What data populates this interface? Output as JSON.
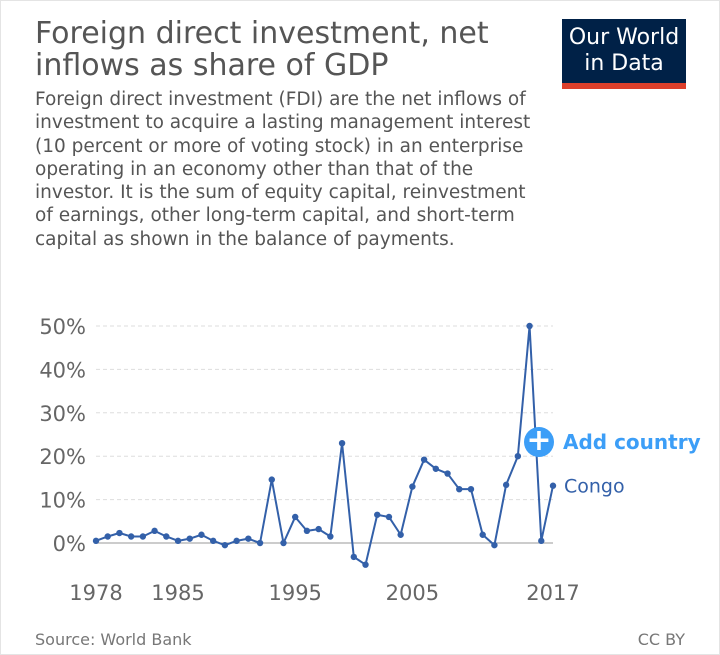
{
  "header": {
    "title": "Foreign direct investment, net inflows as share of GDP",
    "subtitle": "Foreign direct investment (FDI) are the net inflows of investment to acquire a lasting management interest (10 percent or more of voting stock) in an enterprise operating in an economy other than that of the investor. It is the sum of equity capital, reinvestment of earnings, other long-term capital, and short-term capital as shown in the balance of payments.",
    "logo_line1": "Our World",
    "logo_line2": "in Data"
  },
  "controls": {
    "add_country_label": "Add country",
    "add_country_icon": "plus-icon"
  },
  "footer": {
    "source": "Source: World Bank",
    "license": "CC BY"
  },
  "colors": {
    "series": "#3360a9",
    "accent": "#3c9ef7",
    "logo_bg": "#002147",
    "logo_bar": "#dc3f2b"
  },
  "chart_data": {
    "type": "line",
    "ylim": [
      0,
      50
    ],
    "xlim": [
      1978,
      2017
    ],
    "y_ticks": [
      0,
      10,
      20,
      30,
      40,
      50
    ],
    "y_tick_labels": [
      "0%",
      "10%",
      "20%",
      "30%",
      "40%",
      "50%"
    ],
    "x_ticks": [
      1978,
      1985,
      1995,
      2005,
      2017
    ],
    "x_tick_labels": [
      "1978",
      "1985",
      "1995",
      "2005",
      "2017"
    ],
    "grid": "horizontal-dashed",
    "series": [
      {
        "name": "Congo",
        "x": [
          1978,
          1979,
          1980,
          1981,
          1982,
          1983,
          1984,
          1985,
          1986,
          1987,
          1988,
          1989,
          1990,
          1991,
          1992,
          1993,
          1994,
          1995,
          1996,
          1997,
          1998,
          1999,
          2000,
          2001,
          2002,
          2003,
          2004,
          2005,
          2006,
          2007,
          2008,
          2009,
          2010,
          2011,
          2012,
          2013,
          2014,
          2015,
          2016,
          2017
        ],
        "values": [
          0.5,
          1.5,
          2.3,
          1.5,
          1.5,
          2.8,
          1.5,
          0.5,
          1.0,
          1.9,
          0.5,
          -0.5,
          0.5,
          1.0,
          0.0,
          14.6,
          0.0,
          6.0,
          2.8,
          3.2,
          1.5,
          23.0,
          -3.2,
          -5.0,
          6.5,
          6.0,
          1.9,
          13.0,
          19.2,
          17.1,
          16.0,
          12.4,
          12.4,
          1.9,
          -0.5,
          13.4,
          20.0,
          50.0,
          0.5,
          13.2
        ]
      }
    ]
  }
}
